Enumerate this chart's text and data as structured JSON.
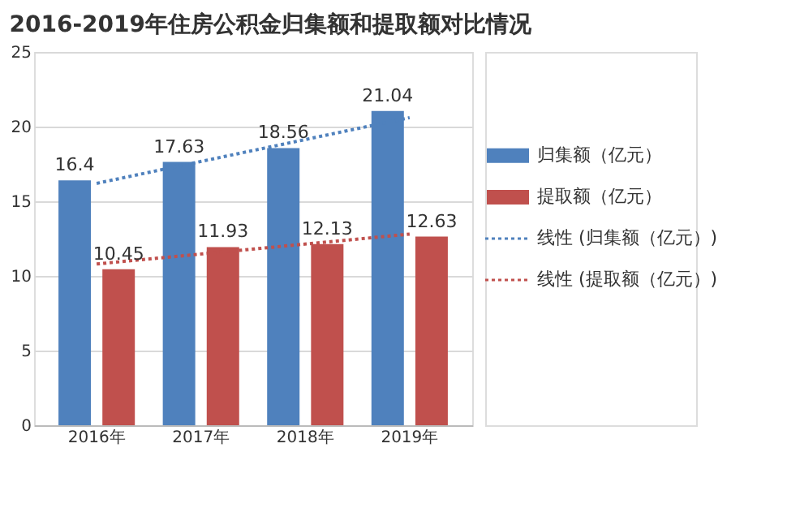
{
  "chart_data": {
    "type": "bar",
    "title": "2016-2019年住房公积金归集额和提取额对比情况",
    "categories": [
      "2016年",
      "2017年",
      "2018年",
      "2019年"
    ],
    "series": [
      {
        "name": "归集额（亿元）",
        "color": "#4f81bd",
        "values": [
          16.4,
          17.63,
          18.56,
          21.04
        ],
        "value_labels": [
          "16.4",
          "17.63",
          "18.56",
          "21.04"
        ]
      },
      {
        "name": "提取额（亿元）",
        "color": "#c0504d",
        "values": [
          10.45,
          11.93,
          12.13,
          12.63
        ],
        "value_labels": [
          "10.45",
          "11.93",
          "12.13",
          "12.63"
        ]
      },
      {
        "name": "线性 (归集额（亿元）)",
        "type": "line",
        "line_style": "dotted",
        "color": "#4f81bd",
        "x": [
          "2016年",
          "2019年"
        ],
        "values": [
          16.2,
          20.6
        ]
      },
      {
        "name": "线性 (提取额（亿元）)",
        "type": "line",
        "line_style": "dotted",
        "color": "#c0504d",
        "x": [
          "2016年",
          "2019年"
        ],
        "values": [
          10.8,
          12.8
        ]
      }
    ],
    "ylim": [
      0,
      25
    ],
    "yticks": [
      0,
      5,
      10,
      15,
      20,
      25
    ],
    "grid": "y",
    "legend": "right"
  }
}
